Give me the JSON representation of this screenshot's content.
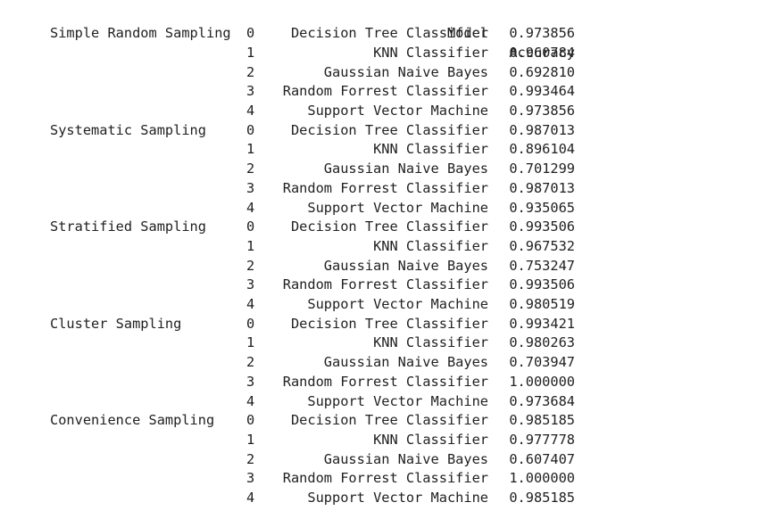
{
  "header": {
    "model": "Model",
    "accuracy": "Accuracy"
  },
  "rows": [
    {
      "group": "Simple Random Sampling",
      "index": "0",
      "model": "Decision Tree Classifier",
      "accuracy": "0.973856"
    },
    {
      "group": "",
      "index": "1",
      "model": "KNN Classifier",
      "accuracy": "0.960784"
    },
    {
      "group": "",
      "index": "2",
      "model": "Gaussian Naive Bayes",
      "accuracy": "0.692810"
    },
    {
      "group": "",
      "index": "3",
      "model": "Random Forrest Classifier",
      "accuracy": "0.993464"
    },
    {
      "group": "",
      "index": "4",
      "model": "Support Vector Machine",
      "accuracy": "0.973856"
    },
    {
      "group": "Systematic Sampling",
      "index": "0",
      "model": "Decision Tree Classifier",
      "accuracy": "0.987013"
    },
    {
      "group": "",
      "index": "1",
      "model": "KNN Classifier",
      "accuracy": "0.896104"
    },
    {
      "group": "",
      "index": "2",
      "model": "Gaussian Naive Bayes",
      "accuracy": "0.701299"
    },
    {
      "group": "",
      "index": "3",
      "model": "Random Forrest Classifier",
      "accuracy": "0.987013"
    },
    {
      "group": "",
      "index": "4",
      "model": "Support Vector Machine",
      "accuracy": "0.935065"
    },
    {
      "group": "Stratified Sampling",
      "index": "0",
      "model": "Decision Tree Classifier",
      "accuracy": "0.993506"
    },
    {
      "group": "",
      "index": "1",
      "model": "KNN Classifier",
      "accuracy": "0.967532"
    },
    {
      "group": "",
      "index": "2",
      "model": "Gaussian Naive Bayes",
      "accuracy": "0.753247"
    },
    {
      "group": "",
      "index": "3",
      "model": "Random Forrest Classifier",
      "accuracy": "0.993506"
    },
    {
      "group": "",
      "index": "4",
      "model": "Support Vector Machine",
      "accuracy": "0.980519"
    },
    {
      "group": "Cluster Sampling",
      "index": "0",
      "model": "Decision Tree Classifier",
      "accuracy": "0.993421"
    },
    {
      "group": "",
      "index": "1",
      "model": "KNN Classifier",
      "accuracy": "0.980263"
    },
    {
      "group": "",
      "index": "2",
      "model": "Gaussian Naive Bayes",
      "accuracy": "0.703947"
    },
    {
      "group": "",
      "index": "3",
      "model": "Random Forrest Classifier",
      "accuracy": "1.000000"
    },
    {
      "group": "",
      "index": "4",
      "model": "Support Vector Machine",
      "accuracy": "0.973684"
    },
    {
      "group": "Convenience Sampling",
      "index": "0",
      "model": "Decision Tree Classifier",
      "accuracy": "0.985185"
    },
    {
      "group": "",
      "index": "1",
      "model": "KNN Classifier",
      "accuracy": "0.977778"
    },
    {
      "group": "",
      "index": "2",
      "model": "Gaussian Naive Bayes",
      "accuracy": "0.607407"
    },
    {
      "group": "",
      "index": "3",
      "model": "Random Forrest Classifier",
      "accuracy": "1.000000"
    },
    {
      "group": "",
      "index": "4",
      "model": "Support Vector Machine",
      "accuracy": "0.985185"
    }
  ]
}
